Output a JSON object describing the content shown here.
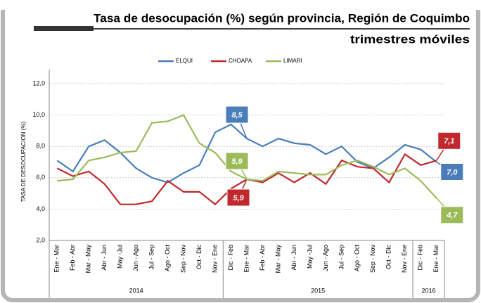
{
  "chart_data": {
    "type": "line",
    "title": "Tasa de desocupación (%) según provincia, Región de Coquimbo",
    "subtitle": "trimestres móviles",
    "y_label": "TASA DE DESOCUPACION (%)",
    "categories": [
      "Ene - Mar",
      "Feb - Abr",
      "Mar - May",
      "Abr - Jun",
      "May -Jul",
      "Jun - Ago",
      "Jul - Sep",
      "Ago - Oct",
      "Sep - Nov",
      "Oct - Dic",
      "Nov - Ene",
      "Dic - Feb",
      "Ene - Mar",
      "Feb - Abr",
      "Mar - May",
      "Abr - Jun",
      "May -Jul",
      "Jun - Ago",
      "Jul - Sep",
      "Ago - Oct",
      "Sep - Nov",
      "Oct - Dic",
      "Nov - Ene",
      "Dic - Feb",
      "Ene - Mar"
    ],
    "groups": [
      {
        "label": "2014",
        "span": 11
      },
      {
        "label": "2015",
        "span": 12
      },
      {
        "label": "2016",
        "span": 2
      }
    ],
    "series": [
      {
        "name": "ELQUI",
        "color": "#4a7ebb",
        "values": [
          7.1,
          6.4,
          8.0,
          8.4,
          7.6,
          6.6,
          6.0,
          5.7,
          6.3,
          6.8,
          8.9,
          9.4,
          8.5,
          8.0,
          8.5,
          8.2,
          8.1,
          7.5,
          8.0,
          7.0,
          6.6,
          7.3,
          8.1,
          7.8,
          7.0
        ],
        "value_labels": [
          null,
          null,
          null,
          null,
          null,
          null,
          null,
          null,
          null,
          null,
          null,
          null,
          "8,5",
          null,
          null,
          null,
          null,
          null,
          null,
          null,
          null,
          null,
          null,
          null,
          "7,0"
        ]
      },
      {
        "name": "CHOAPA",
        "color": "#c0282d",
        "values": [
          6.6,
          6.1,
          6.4,
          5.6,
          4.3,
          4.3,
          4.5,
          5.8,
          5.1,
          5.1,
          4.3,
          5.3,
          5.9,
          5.7,
          6.3,
          5.7,
          6.3,
          5.6,
          7.1,
          6.7,
          6.6,
          5.7,
          7.5,
          6.8,
          7.1
        ],
        "value_labels": [
          null,
          null,
          null,
          null,
          null,
          null,
          null,
          null,
          null,
          null,
          null,
          null,
          "5,9",
          null,
          null,
          null,
          null,
          null,
          null,
          null,
          null,
          null,
          null,
          null,
          "7,1"
        ]
      },
      {
        "name": "LIMARI",
        "color": "#9bbb59",
        "values": [
          5.8,
          5.9,
          7.1,
          7.3,
          7.6,
          7.7,
          9.5,
          9.6,
          10.0,
          8.2,
          7.6,
          6.4,
          5.9,
          5.8,
          6.4,
          6.3,
          6.2,
          6.2,
          6.8,
          7.1,
          6.7,
          6.2,
          6.6,
          5.8,
          4.7
        ],
        "value_labels": [
          null,
          null,
          null,
          null,
          null,
          null,
          null,
          null,
          null,
          null,
          null,
          null,
          "5,9",
          null,
          null,
          null,
          null,
          null,
          null,
          null,
          null,
          null,
          null,
          null,
          "4,7"
        ]
      }
    ],
    "ylim": [
      2,
      12
    ],
    "yticks": [
      {
        "value": 2,
        "label": "2,0"
      },
      {
        "value": 4,
        "label": "4,0"
      },
      {
        "value": 6,
        "label": "6,0"
      },
      {
        "value": 8,
        "label": "8,0"
      },
      {
        "value": 10,
        "label": "10,0"
      },
      {
        "value": 12,
        "label": "12,0"
      }
    ],
    "grid": true,
    "legend": "top"
  }
}
